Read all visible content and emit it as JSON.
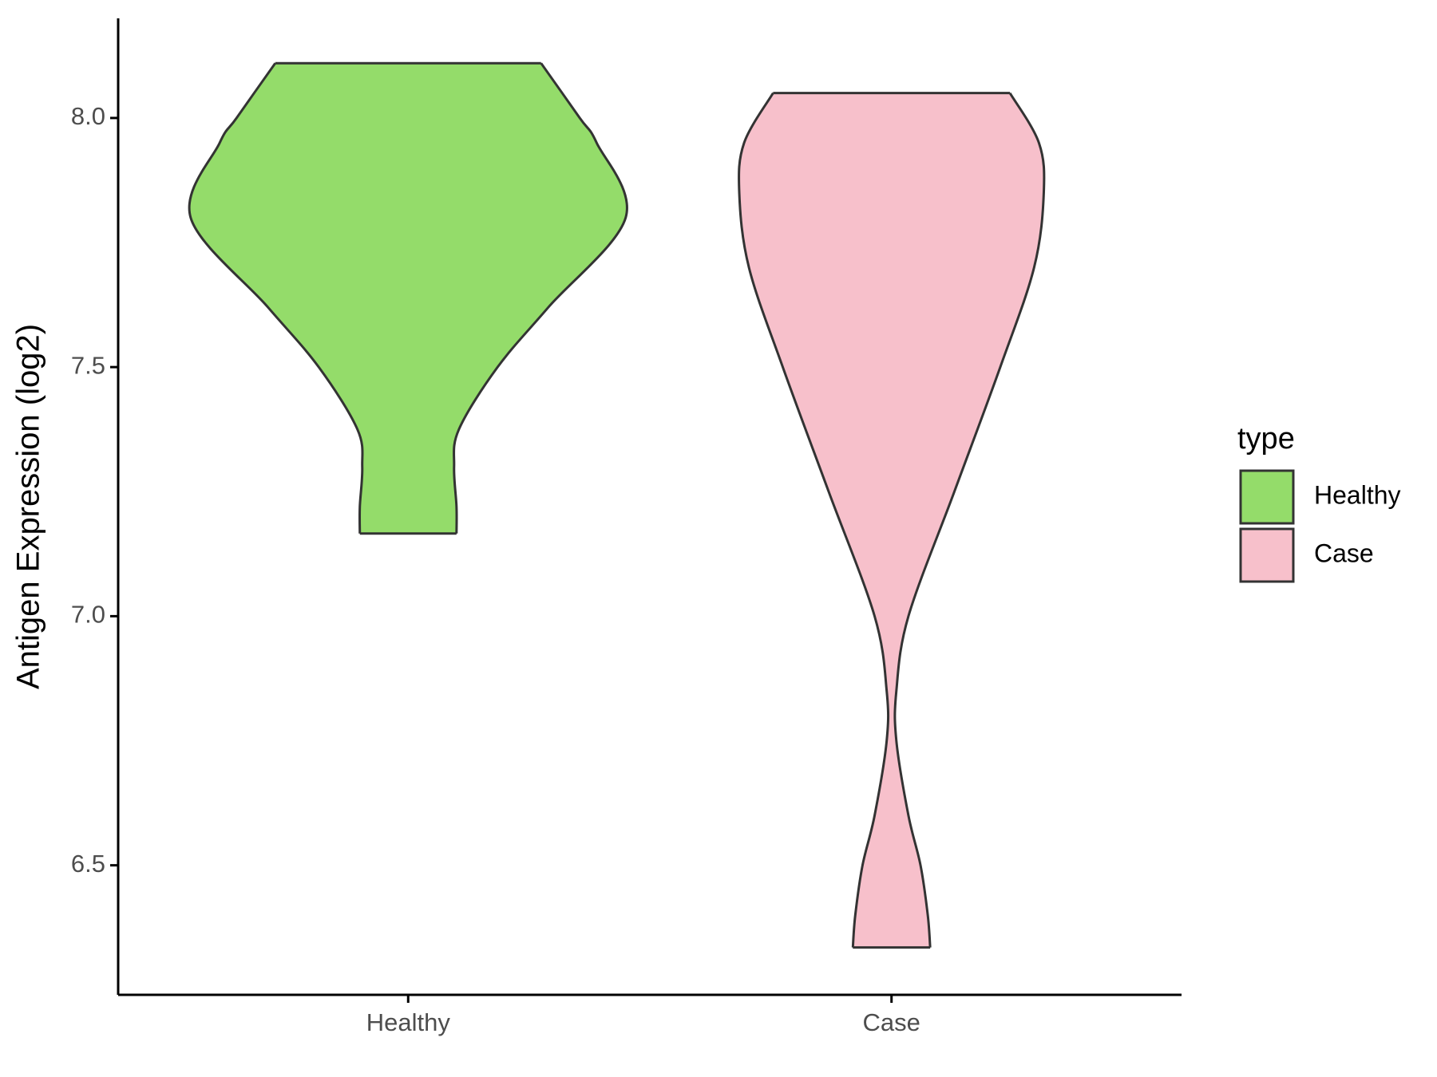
{
  "chart_data": {
    "type": "violin",
    "y_label": "Antigen Expression (log2)",
    "categories": [
      "Healthy",
      "Case"
    ],
    "legend_title": "type",
    "legend": "right",
    "ylim": [
      6.24,
      8.2
    ],
    "yticks": [
      {
        "value": 6.5,
        "label": "6.5"
      },
      {
        "value": 7,
        "label": "7.0"
      },
      {
        "value": 7.5,
        "label": "7.5"
      },
      {
        "value": 8,
        "label": "8.0"
      }
    ],
    "series": [
      {
        "name": "Healthy",
        "color": "#94dc6a",
        "y": [
          8.11,
          8.0,
          7.95,
          7.8,
          7.62,
          7.5,
          7.375,
          7.3,
          7.22,
          7.166
        ],
        "width": [
          0.55,
          0.71,
          0.78,
          0.9,
          0.58,
          0.37,
          0.21,
          0.19,
          0.2,
          0.2
        ]
      },
      {
        "name": "Case",
        "color": "#f7c0cb",
        "y": [
          8.05,
          7.95,
          7.85,
          7.7,
          7.5,
          7.25,
          7.0,
          6.85,
          6.75,
          6.6,
          6.5,
          6.4,
          6.335
        ],
        "width": [
          0.49,
          0.61,
          0.63,
          0.59,
          0.45,
          0.26,
          0.07,
          0.02,
          0.02,
          0.07,
          0.12,
          0.15,
          0.16
        ]
      }
    ]
  }
}
